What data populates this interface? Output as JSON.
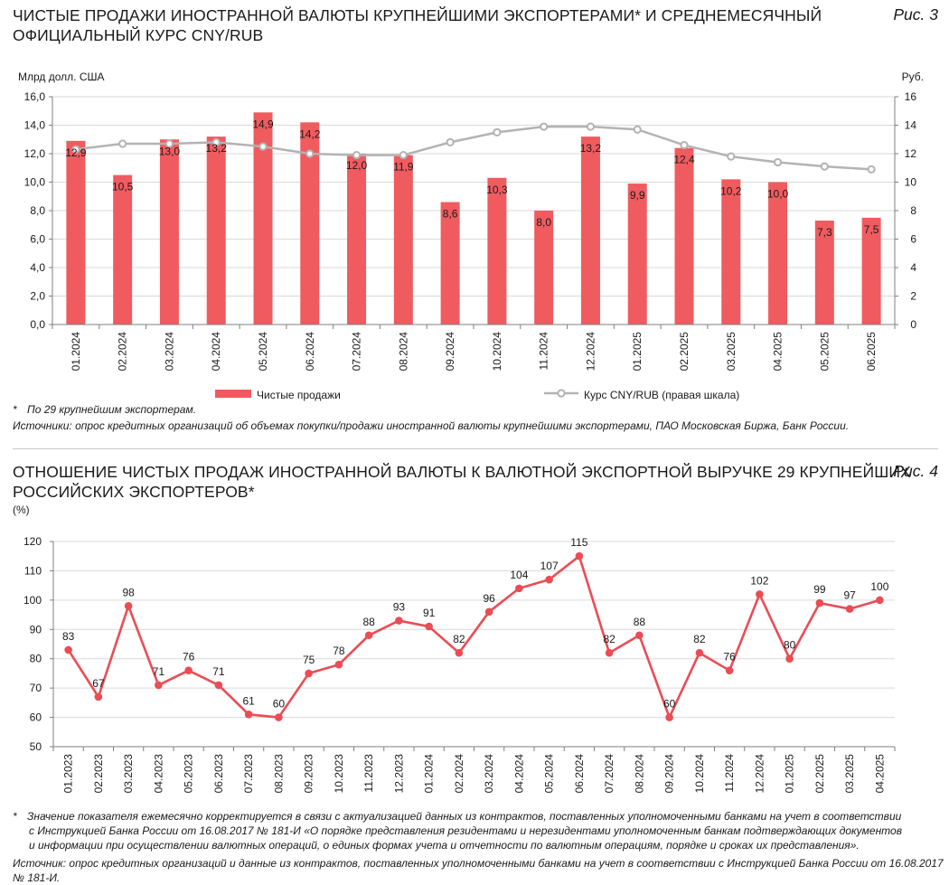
{
  "fig3": {
    "title_line1": "ЧИСТЫЕ ПРОДАЖИ ИНОСТРАННОЙ ВАЛЮТЫ КРУПНЕЙШИМИ ЭКСПОРТЕРАМИ* И СРЕДНЕМЕСЯЧНЫЙ",
    "title_line2": "ОФИЦИАЛЬНЫЙ КУРС CNY/RUB",
    "label": "Рис. 3",
    "note_star": "*",
    "note": "По 29 крупнейшим экспортерам.",
    "source": "Источники: опрос кредитных организаций об объемах покупки/продажи иностранной валюты крупнейшими экспортерами, ПАО Московская Биржа, Банк России."
  },
  "fig4": {
    "title_line1": "ОТНОШЕНИЕ ЧИСТЫХ ПРОДАЖ ИНОСТРАННОЙ ВАЛЮТЫ К ВАЛЮТНОЙ ЭКСПОРТНОЙ ВЫРУЧКЕ 29 КРУПНЕЙШИХ",
    "title_line2": "РОССИЙСКИХ ЭКСПОРТЕРОВ*",
    "label": "Рис. 4",
    "unit": "(%)",
    "note_star": "*",
    "note_line1": "Значение показателя ежемесячно корректируется в связи с актуализацией данных из контрактов, поставленных уполномоченными банками на учет в соответствии",
    "note_line2": "с Инструкцией Банка России от 16.08.2017 № 181-И «О порядке представления резидентами и нерезидентами уполномоченным банкам подтверждающих документов",
    "note_line3": "и информации при осуществлении валютных операций, о единых формах учета и отчетности по валютным операциям, порядке и сроках их представления».",
    "source_line1": "Источник: опрос кредитных организаций и данные из контрактов, поставленных уполномоченными банками на учет в соответствии с Инструкцией Банка России от 16.08.2017",
    "source_line2": "№ 181-И."
  },
  "colors": {
    "bar": "#f05b5f",
    "rate_line": "#b3b3b3",
    "ratio_line": "#eb4c55",
    "grid": "#d9d9d9",
    "axis": "#7f7f7f"
  },
  "chart_data": [
    {
      "type": "bar",
      "title": "Чистые продажи иностранной валюты крупнейшими экспортерами и среднемесячный официальный курс CNY/RUB",
      "ylabel": "Млрд долл. США",
      "y2label": "Руб.",
      "ylim": [
        0,
        16
      ],
      "y2lim": [
        0,
        16
      ],
      "yticks": [
        "0,0",
        "2,0",
        "4,0",
        "6,0",
        "8,0",
        "10,0",
        "12,0",
        "14,0",
        "16,0"
      ],
      "y2ticks": [
        "0",
        "2",
        "4",
        "6",
        "8",
        "10",
        "12",
        "14",
        "16"
      ],
      "categories": [
        "01.2024",
        "02.2024",
        "03.2024",
        "04.2024",
        "05.2024",
        "06.2024",
        "07.2024",
        "08.2024",
        "09.2024",
        "10.2024",
        "11.2024",
        "12.2024",
        "01.2025",
        "02.2025",
        "03.2025",
        "04.2025",
        "05.2025",
        "06.2025"
      ],
      "series": [
        {
          "name": "Чистые продажи",
          "kind": "bar",
          "axis": "left",
          "values": [
            12.9,
            10.5,
            13.0,
            13.2,
            14.9,
            14.2,
            12.0,
            11.9,
            8.6,
            10.3,
            8.0,
            13.2,
            9.9,
            12.4,
            10.2,
            10.0,
            7.3,
            7.5
          ],
          "labels": [
            "12,9",
            "10,5",
            "13,0",
            "13,2",
            "14,9",
            "14,2",
            "12,0",
            "11,9",
            "8,6",
            "10,3",
            "8,0",
            "13,2",
            "9,9",
            "12,4",
            "10,2",
            "10,0",
            "7,3",
            "7,5"
          ]
        },
        {
          "name": "Курс CNY/RUB (правая шкала)",
          "kind": "line",
          "axis": "right",
          "values": [
            12.3,
            12.7,
            12.7,
            12.8,
            12.5,
            12.0,
            11.9,
            11.9,
            12.8,
            13.5,
            13.9,
            13.9,
            13.7,
            12.6,
            11.8,
            11.4,
            11.1,
            10.9
          ]
        }
      ],
      "legend": "bottom"
    },
    {
      "type": "line",
      "title": "Отношение чистых продаж иностранной валюты к валютной экспортной выручке 29 крупнейших российских экспортеров",
      "ylabel": "(%)",
      "ylim": [
        50,
        120
      ],
      "yticks": [
        "50",
        "60",
        "70",
        "80",
        "90",
        "100",
        "110",
        "120"
      ],
      "categories": [
        "01.2023",
        "02.2023",
        "03.2023",
        "04.2023",
        "05.2023",
        "06.2023",
        "07.2023",
        "08.2023",
        "09.2023",
        "10.2023",
        "11.2023",
        "12.2023",
        "01.2024",
        "02.2024",
        "03.2024",
        "04.2024",
        "05.2024",
        "06.2024",
        "07.2024",
        "08.2024",
        "09.2024",
        "10.2024",
        "11.2024",
        "12.2024",
        "01.2025",
        "02.2025",
        "03.2025",
        "04.2025"
      ],
      "series": [
        {
          "name": "Отношение чистых продаж к выручке",
          "values": [
            83,
            67,
            98,
            71,
            76,
            71,
            61,
            60,
            75,
            78,
            88,
            93,
            91,
            82,
            96,
            104,
            107,
            115,
            82,
            88,
            60,
            82,
            76,
            102,
            80,
            99,
            97,
            100
          ],
          "labels": [
            "83",
            "67",
            "98",
            "71",
            "76",
            "71",
            "61",
            "60",
            "75",
            "78",
            "88",
            "93",
            "91",
            "82",
            "96",
            "104",
            "107",
            "115",
            "82",
            "88",
            "60",
            "82",
            "76",
            "102",
            "80",
            "99",
            "97",
            "100"
          ]
        }
      ],
      "legend": "none"
    }
  ]
}
